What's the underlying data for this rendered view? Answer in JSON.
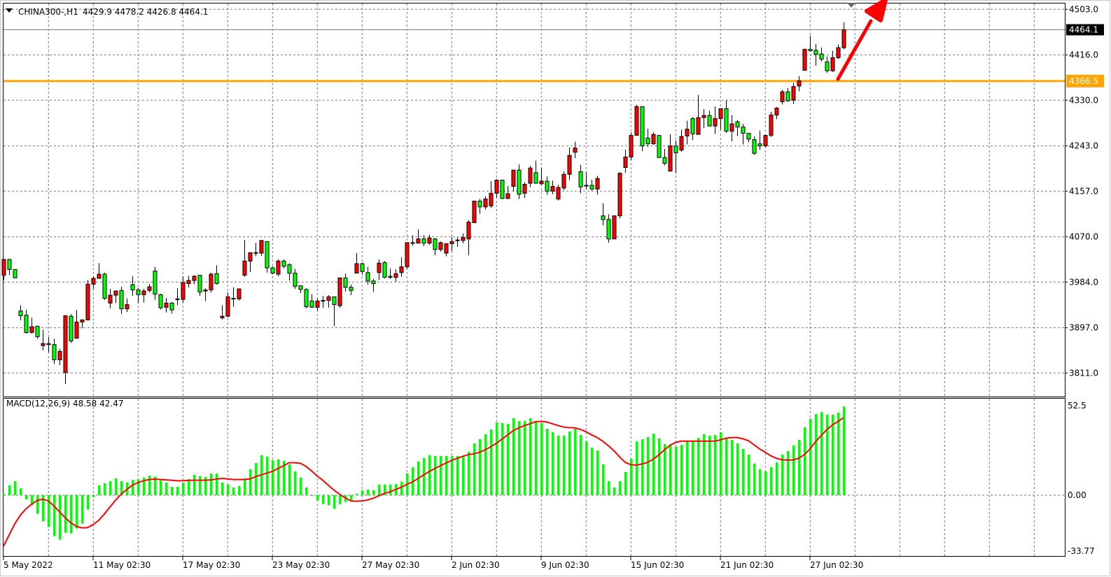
{
  "header": {
    "symbol": "CHINA300-,H1",
    "ohlc_text": "4429.9 4478.2 4426.8 4464.1"
  },
  "macd_header": "MACD(12,26,9) 48.58 42.47",
  "colors": {
    "bull": "#ff0000",
    "bear": "#00ff00",
    "level": "#ffa500",
    "histogram": "#00ff00",
    "signal": "#ff0000",
    "arrow": "#ff0000",
    "price_tag": "#000000"
  },
  "chart_data": [
    {
      "type": "candlestick",
      "title": "CHINA300-,H1",
      "ylim": [
        3785,
        4515
      ],
      "y_ticks": [
        "4503.0",
        "4416.0",
        "4330.0",
        "4243.0",
        "4157.0",
        "4070.0",
        "3984.0",
        "3897.0",
        "3811.0"
      ],
      "x_ticks": [
        "5 May 2022",
        "11 May 02:30",
        "17 May 02:30",
        "23 May 02:30",
        "27 May 02:30",
        "2 Jun 02:30",
        "9 Jun 02:30",
        "15 Jun 02:30",
        "21 Jun 02:30",
        "27 Jun 02:30"
      ],
      "grid": true,
      "current_price": "4464.1",
      "level_line": {
        "price": "4366.5",
        "color": "#ffa500"
      },
      "annotation": "red up arrow",
      "ohlc": [
        [
          3997,
          4028,
          3988,
          4027
        ],
        [
          4027,
          4028,
          3997,
          4008
        ],
        [
          4008,
          4008,
          3992,
          3992
        ],
        [
          3929,
          3940,
          3911,
          3920
        ],
        [
          3921,
          3931,
          3886,
          3888
        ],
        [
          3888,
          3916,
          3886,
          3899
        ],
        [
          3900,
          3900,
          3876,
          3880
        ],
        [
          3863,
          3893,
          3854,
          3867
        ],
        [
          3867,
          3879,
          3850,
          3865
        ],
        [
          3865,
          3876,
          3828,
          3836
        ],
        [
          3836,
          3857,
          3826,
          3852
        ],
        [
          3812,
          3920,
          3790,
          3920
        ],
        [
          3919,
          3923,
          3868,
          3872
        ],
        [
          3877,
          3931,
          3877,
          3908
        ],
        [
          3908,
          3913,
          3896,
          3912
        ],
        [
          3912,
          3988,
          3911,
          3980
        ],
        [
          3980,
          3995,
          3971,
          3991
        ],
        [
          3991,
          4020,
          3991,
          3999
        ],
        [
          3999,
          4002,
          3950,
          3953
        ],
        [
          3944,
          3971,
          3934,
          3959
        ],
        [
          3959,
          3968,
          3944,
          3967
        ],
        [
          3968,
          3975,
          3923,
          3933
        ],
        [
          3933,
          3953,
          3927,
          3941
        ],
        [
          3979,
          3995,
          3958,
          3969
        ],
        [
          3969,
          3973,
          3944,
          3960
        ],
        [
          3960,
          3971,
          3945,
          3967
        ],
        [
          3968,
          3980,
          3964,
          3975
        ],
        [
          4005,
          4013,
          3950,
          3961
        ],
        [
          3960,
          3962,
          3932,
          3935
        ],
        [
          3936,
          3954,
          3926,
          3944
        ],
        [
          3944,
          3946,
          3924,
          3931
        ],
        [
          3951,
          3972,
          3940,
          3952
        ],
        [
          3951,
          3995,
          3945,
          3983
        ],
        [
          3981,
          3996,
          3974,
          3987
        ],
        [
          3987,
          3997,
          3980,
          3995
        ],
        [
          3997,
          3997,
          3958,
          3965
        ],
        [
          3967,
          3972,
          3948,
          3969
        ],
        [
          3969,
          4002,
          3964,
          3999
        ],
        [
          4000,
          4016,
          3979,
          3981
        ],
        [
          3916,
          3940,
          3913,
          3919
        ],
        [
          3919,
          3964,
          3917,
          3956
        ],
        [
          3952,
          3974,
          3937,
          3953
        ],
        [
          3952,
          3971,
          3949,
          3971
        ],
        [
          3997,
          4064,
          3994,
          4024
        ],
        [
          4024,
          4040,
          4003,
          4040
        ],
        [
          4039,
          4058,
          4033,
          4040
        ],
        [
          4039,
          4064,
          4034,
          4063
        ],
        [
          4061,
          4061,
          4002,
          4011
        ],
        [
          4011,
          4014,
          3999,
          4001
        ],
        [
          3999,
          4027,
          3995,
          4024
        ],
        [
          4024,
          4027,
          4010,
          4014
        ],
        [
          4017,
          4020,
          3987,
          4001
        ],
        [
          4001,
          4009,
          3971,
          3976
        ],
        [
          3977,
          3977,
          3963,
          3970
        ],
        [
          3970,
          3972,
          3934,
          3937
        ],
        [
          3948,
          3961,
          3936,
          3936
        ],
        [
          3936,
          3953,
          3929,
          3948
        ],
        [
          3949,
          3958,
          3935,
          3948
        ],
        [
          3949,
          3959,
          3935,
          3956
        ],
        [
          3956,
          3956,
          3900,
          3941
        ],
        [
          3939,
          3992,
          3935,
          3992
        ],
        [
          3992,
          4000,
          3966,
          3974
        ],
        [
          3974,
          3979,
          3959,
          3968
        ],
        [
          4001,
          4039,
          4001,
          4019
        ],
        [
          4019,
          4021,
          3998,
          4004
        ],
        [
          4002,
          4013,
          3979,
          3986
        ],
        [
          3986,
          3990,
          3965,
          3981
        ],
        [
          4002,
          4027,
          3988,
          4020
        ],
        [
          4021,
          4024,
          3991,
          3993
        ],
        [
          3995,
          4010,
          3990,
          3993
        ],
        [
          3993,
          4008,
          3985,
          4000
        ],
        [
          4002,
          4031,
          3994,
          4013
        ],
        [
          4013,
          4059,
          4009,
          4059
        ],
        [
          4058,
          4073,
          4053,
          4059
        ],
        [
          4058,
          4084,
          4057,
          4066
        ],
        [
          4066,
          4073,
          4052,
          4058
        ],
        [
          4058,
          4074,
          4055,
          4068
        ],
        [
          4066,
          4068,
          4035,
          4046
        ],
        [
          4046,
          4061,
          4042,
          4059
        ],
        [
          4039,
          4058,
          4033,
          4057
        ],
        [
          4057,
          4070,
          4043,
          4061
        ],
        [
          4063,
          4069,
          4051,
          4064
        ],
        [
          4063,
          4076,
          4058,
          4069
        ],
        [
          4066,
          4102,
          4035,
          4098
        ],
        [
          4097,
          4138,
          4097,
          4138
        ],
        [
          4138,
          4142,
          4114,
          4127
        ],
        [
          4127,
          4147,
          4122,
          4142
        ],
        [
          4129,
          4176,
          4125,
          4153
        ],
        [
          4153,
          4180,
          4144,
          4178
        ],
        [
          4178,
          4178,
          4142,
          4143
        ],
        [
          4143,
          4167,
          4142,
          4152
        ],
        [
          4166,
          4197,
          4157,
          4197
        ],
        [
          4197,
          4208,
          4142,
          4151
        ],
        [
          4153,
          4174,
          4144,
          4170
        ],
        [
          4172,
          4205,
          4165,
          4201
        ],
        [
          4192,
          4215,
          4172,
          4172
        ],
        [
          4171,
          4201,
          4169,
          4176
        ],
        [
          4176,
          4185,
          4150,
          4157
        ],
        [
          4157,
          4177,
          4151,
          4166
        ],
        [
          4142,
          4169,
          4139,
          4164
        ],
        [
          4163,
          4195,
          4159,
          4189
        ],
        [
          4189,
          4240,
          4178,
          4225
        ],
        [
          4231,
          4251,
          4220,
          4239
        ],
        [
          4194,
          4207,
          4153,
          4165
        ],
        [
          4168,
          4193,
          4161,
          4167
        ],
        [
          4168,
          4179,
          4158,
          4161
        ],
        [
          4161,
          4186,
          4150,
          4181
        ],
        [
          4110,
          4134,
          4092,
          4103
        ],
        [
          4103,
          4113,
          4059,
          4066
        ],
        [
          4066,
          4110,
          4066,
          4110
        ],
        [
          4110,
          4193,
          4105,
          4191
        ],
        [
          4202,
          4236,
          4192,
          4222
        ],
        [
          4222,
          4269,
          4216,
          4263
        ],
        [
          4263,
          4321,
          4263,
          4318
        ],
        [
          4318,
          4318,
          4233,
          4243
        ],
        [
          4258,
          4276,
          4241,
          4247
        ],
        [
          4247,
          4269,
          4245,
          4265
        ],
        [
          4263,
          4263,
          4221,
          4221
        ],
        [
          4221,
          4237,
          4206,
          4210
        ],
        [
          4195,
          4265,
          4195,
          4243
        ],
        [
          4243,
          4253,
          4191,
          4230
        ],
        [
          4235,
          4274,
          4232,
          4261
        ],
        [
          4262,
          4291,
          4246,
          4275
        ],
        [
          4295,
          4298,
          4254,
          4266
        ],
        [
          4265,
          4340,
          4265,
          4297
        ],
        [
          4297,
          4313,
          4277,
          4301
        ],
        [
          4301,
          4310,
          4281,
          4281
        ],
        [
          4281,
          4318,
          4266,
          4295
        ],
        [
          4295,
          4314,
          4274,
          4314
        ],
        [
          4314,
          4330,
          4268,
          4271
        ],
        [
          4271,
          4302,
          4252,
          4285
        ],
        [
          4289,
          4292,
          4262,
          4279
        ],
        [
          4279,
          4285,
          4246,
          4267
        ],
        [
          4267,
          4267,
          4250,
          4256
        ],
        [
          4255,
          4261,
          4226,
          4229
        ],
        [
          4247,
          4272,
          4235,
          4243
        ],
        [
          4243,
          4263,
          4241,
          4263
        ],
        [
          4263,
          4308,
          4260,
          4302
        ],
        [
          4302,
          4317,
          4294,
          4315
        ],
        [
          4327,
          4350,
          4322,
          4346
        ],
        [
          4346,
          4353,
          4327,
          4329
        ],
        [
          4330,
          4363,
          4323,
          4356
        ],
        [
          4357,
          4376,
          4347,
          4367
        ],
        [
          4387,
          4428,
          4387,
          4427
        ],
        [
          4427,
          4453,
          4423,
          4424
        ],
        [
          4425,
          4437,
          4396,
          4417
        ],
        [
          4418,
          4430,
          4404,
          4408
        ],
        [
          4403,
          4413,
          4382,
          4386
        ],
        [
          4386,
          4424,
          4384,
          4411
        ],
        [
          4411,
          4436,
          4408,
          4430
        ],
        [
          4429.9,
          4478.2,
          4426.8,
          4464.1
        ]
      ]
    },
    {
      "type": "bar+line",
      "title": "MACD(12,26,9)",
      "ylim": [
        -33.77,
        52.5
      ],
      "y_ticks": [
        "52.5",
        "0.00",
        "-33.77"
      ],
      "histogram": [
        0.8,
        5.4,
        7.7,
        3.8,
        -2.3,
        -5.6,
        -10.2,
        -14.4,
        -17.5,
        -22.5,
        -24.4,
        -20.6,
        -21.0,
        -18.3,
        -15.6,
        -7.9,
        -1.0,
        5.4,
        6.5,
        7.7,
        9.2,
        7.7,
        6.9,
        8.4,
        8.7,
        9.6,
        10.7,
        10.2,
        8.1,
        6.9,
        4.6,
        4.6,
        6.9,
        8.8,
        11.1,
        10.4,
        10.0,
        11.8,
        11.8,
        6.9,
        5.8,
        4.2,
        5.0,
        9.2,
        14.2,
        17.6,
        21.9,
        21.1,
        19.2,
        19.6,
        18.8,
        16.9,
        13.0,
        9.6,
        4.2,
        -0.3,
        -2.9,
        -4.9,
        -5.6,
        -7.5,
        -4.9,
        -3.7,
        -2.8,
        0.8,
        2.7,
        3.1,
        2.7,
        5.8,
        5.8,
        5.8,
        6.1,
        7.3,
        11.9,
        15.3,
        18.4,
        20.3,
        21.9,
        21.5,
        21.5,
        21.5,
        21.5,
        21.5,
        21.5,
        23.8,
        28.4,
        30.7,
        33.4,
        36.0,
        39.9,
        39.5,
        39.1,
        42.2,
        40.6,
        40.6,
        42.2,
        40.6,
        39.5,
        36.4,
        34.5,
        32.6,
        32.6,
        34.9,
        36.4,
        33.0,
        29.5,
        26.1,
        24.5,
        16.9,
        7.7,
        4.2,
        7.7,
        12.7,
        19.9,
        29.5,
        30.7,
        31.8,
        33.7,
        31.1,
        28.0,
        28.0,
        26.5,
        27.6,
        29.5,
        29.5,
        31.4,
        33.4,
        32.6,
        33.0,
        34.5,
        31.1,
        30.3,
        28.4,
        25.3,
        22.2,
        17.3,
        14.2,
        13.0,
        15.3,
        18.0,
        22.2,
        24.2,
        27.2,
        30.3,
        37.2,
        41.8,
        44.5,
        45.6,
        44.1,
        44.1,
        45.2,
        48.58
      ],
      "signal": [
        -28.0,
        -21.9,
        -15.8,
        -11.0,
        -7.5,
        -5.0,
        -2.9,
        -2.2,
        -3.1,
        -5.9,
        -9.1,
        -12.3,
        -15.1,
        -17.1,
        -17.9,
        -17.8,
        -16.1,
        -13.8,
        -10.4,
        -6.5,
        -2.8,
        0.5,
        3.1,
        5.4,
        6.9,
        7.9,
        8.6,
        8.8,
        8.6,
        8.4,
        8.2,
        7.9,
        7.9,
        8.1,
        8.2,
        8.2,
        8.2,
        8.4,
        8.8,
        9.2,
        8.9,
        8.6,
        8.6,
        8.6,
        8.9,
        10.1,
        11.1,
        12.1,
        13.0,
        14.6,
        16.1,
        17.8,
        17.8,
        17.5,
        15.8,
        13.3,
        10.5,
        8.2,
        5.4,
        2.8,
        0.5,
        -1.4,
        -3.1,
        -3.3,
        -3.2,
        -2.6,
        -1.7,
        -0.4,
        1.0,
        1.8,
        3.1,
        4.3,
        5.9,
        7.2,
        9.1,
        11.1,
        12.9,
        14.6,
        16.1,
        17.6,
        19.0,
        20.2,
        21.3,
        22.2,
        22.7,
        23.5,
        24.9,
        26.5,
        28.4,
        30.7,
        33.0,
        35.3,
        36.9,
        38.1,
        39.1,
        40.3,
        40.4,
        40.1,
        39.2,
        38.2,
        37.3,
        37.0,
        36.9,
        36.0,
        34.8,
        33.1,
        31.6,
        29.6,
        27.1,
        24.3,
        21.0,
        18.0,
        16.7,
        16.5,
        17.1,
        18.0,
        19.7,
        22.0,
        24.8,
        27.3,
        28.9,
        29.6,
        29.6,
        29.6,
        29.6,
        29.6,
        29.6,
        29.6,
        30.3,
        31.2,
        31.6,
        31.6,
        30.9,
        29.9,
        27.6,
        25.4,
        23.5,
        21.6,
        20.2,
        19.4,
        19.3,
        19.3,
        20.3,
        22.2,
        25.4,
        29.3,
        32.7,
        35.9,
        38.5,
        40.4,
        42.47
      ]
    }
  ]
}
